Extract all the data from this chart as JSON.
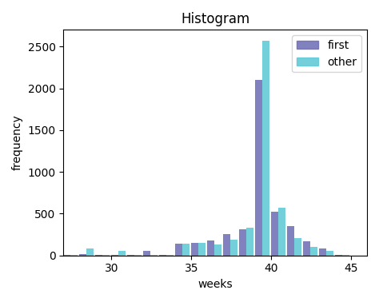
{
  "title": "Histogram",
  "xlabel": "weeks",
  "ylabel": "frequency",
  "xlim": [
    27,
    46
  ],
  "ylim": [
    0,
    2700
  ],
  "first_color": "#6b6bb5",
  "other_color": "#5bc8d5",
  "legend_labels": [
    "first",
    "other"
  ],
  "alpha": 0.85,
  "bin_starts": [
    27,
    28,
    29,
    30,
    31,
    32,
    33,
    34,
    35,
    36,
    37,
    38,
    39,
    40,
    41,
    42,
    43,
    44
  ],
  "first_counts": [
    5,
    15,
    5,
    5,
    5,
    50,
    5,
    140,
    150,
    175,
    255,
    310,
    2100,
    520,
    350,
    170,
    80,
    10
  ],
  "other_counts": [
    5,
    80,
    5,
    55,
    5,
    5,
    5,
    140,
    150,
    130,
    185,
    335,
    2570,
    575,
    205,
    105,
    50,
    10
  ]
}
